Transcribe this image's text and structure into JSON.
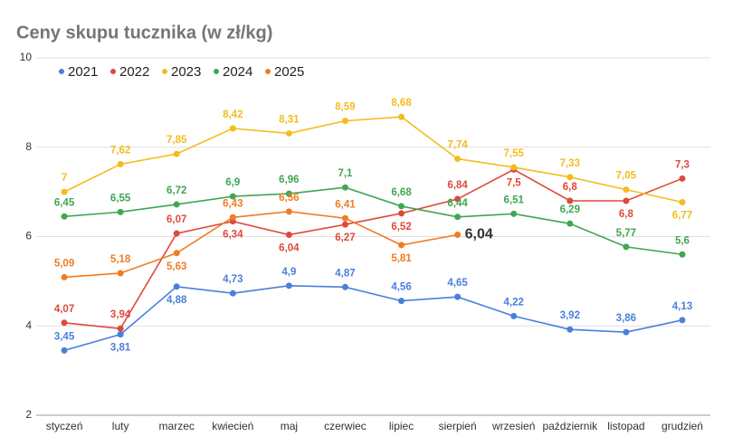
{
  "chart_data": {
    "type": "line",
    "title": "Ceny skupu tucznika (w zł/kg)",
    "categories": [
      "styczeń",
      "luty",
      "marzec",
      "kwiecień",
      "maj",
      "czerwiec",
      "lipiec",
      "sierpień",
      "wrzesień",
      "październik",
      "listopad",
      "grudzień"
    ],
    "ylim": [
      2,
      10
    ],
    "yticks": [
      2,
      4,
      6,
      8,
      10
    ],
    "grid": true,
    "legend": "top-left",
    "series": [
      {
        "name": "2021",
        "color": "#4a7fdc",
        "values": [
          3.45,
          3.81,
          4.88,
          4.73,
          4.9,
          4.87,
          4.56,
          4.65,
          4.22,
          3.92,
          3.86,
          4.13
        ],
        "value_labels": [
          "3,45",
          "3,81",
          "4,88",
          "4,73",
          "4,9",
          "4,87",
          "4,56",
          "4,65",
          "4,22",
          "3,92",
          "3,86",
          "4,13"
        ]
      },
      {
        "name": "2022",
        "color": "#dc4a3c",
        "values": [
          4.07,
          3.94,
          6.07,
          6.34,
          6.04,
          6.27,
          6.52,
          6.84,
          7.5,
          6.8,
          6.8,
          7.3
        ],
        "value_labels": [
          "4,07",
          "3,94",
          "6,07",
          "6,34",
          "6,04",
          "6,27",
          "6,52",
          "6,84",
          "7,5",
          "6,8",
          "6,8",
          "7,3"
        ]
      },
      {
        "name": "2023",
        "color": "#f2bd1d",
        "values": [
          7,
          7.62,
          7.85,
          8.42,
          8.31,
          8.59,
          8.68,
          7.74,
          7.55,
          7.33,
          7.05,
          6.77
        ],
        "value_labels": [
          "7",
          "7,62",
          "7,85",
          "8,42",
          "8,31",
          "8,59",
          "8,68",
          "7,74",
          "7,55",
          "7,33",
          "7,05",
          "6,77"
        ]
      },
      {
        "name": "2024",
        "color": "#3fa652",
        "values": [
          6.45,
          6.55,
          6.72,
          6.9,
          6.96,
          7.1,
          6.68,
          6.44,
          6.51,
          6.29,
          5.77,
          5.6
        ],
        "value_labels": [
          "6,45",
          "6,55",
          "6,72",
          "6,9",
          "6,96",
          "7,1",
          "6,68",
          "6,44",
          "6,51",
          "6,29",
          "5,77",
          "5,6"
        ]
      },
      {
        "name": "2025",
        "color": "#f07c22",
        "values": [
          5.09,
          5.18,
          5.63,
          6.43,
          6.56,
          6.41,
          5.81,
          6.04,
          null,
          null,
          null,
          null
        ],
        "value_labels": [
          "5,09",
          "5,18",
          "5,63",
          "6,43",
          "6,56",
          "6,41",
          "5,81",
          "6,04",
          null,
          null,
          null,
          null
        ]
      }
    ]
  }
}
